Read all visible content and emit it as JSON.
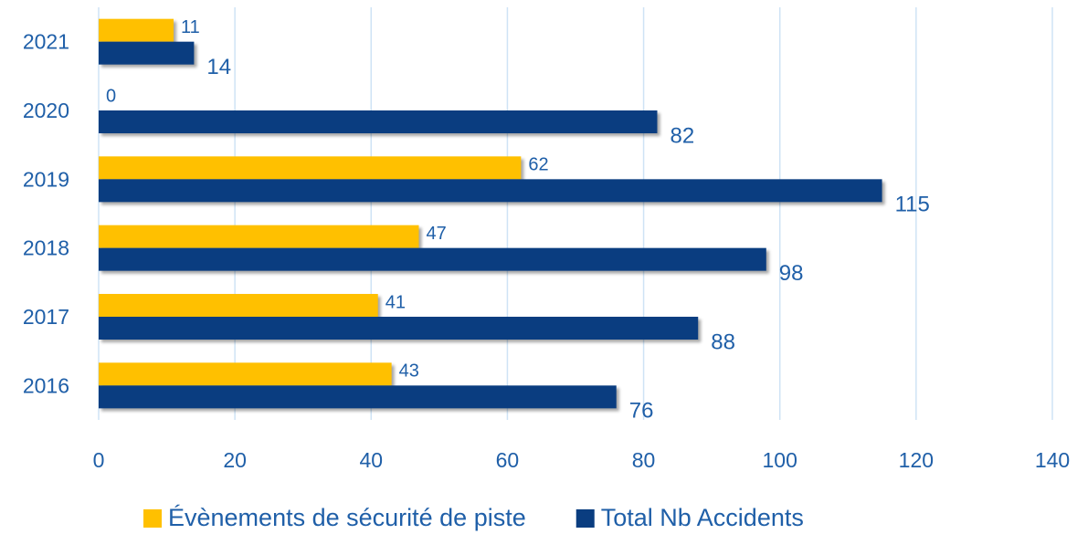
{
  "chart_data": {
    "type": "bar",
    "orientation": "horizontal",
    "categories": [
      "2021",
      "2020",
      "2019",
      "2018",
      "2017",
      "2016"
    ],
    "series": [
      {
        "name": "Évènements de sécurité de piste",
        "color": "#ffc000",
        "values": [
          11,
          0,
          62,
          47,
          41,
          43
        ]
      },
      {
        "name": "Total Nb Accidents",
        "color": "#0a3d80",
        "values": [
          14,
          82,
          115,
          98,
          88,
          76
        ]
      }
    ],
    "xlim": [
      0,
      140
    ],
    "xticks": [
      0,
      20,
      40,
      60,
      80,
      100,
      120,
      140
    ],
    "grid": true,
    "legend": "bottom"
  }
}
